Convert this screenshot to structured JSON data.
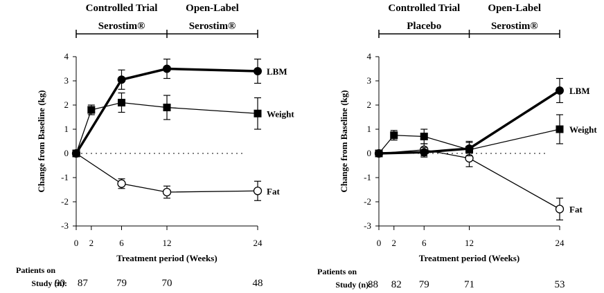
{
  "chart_data": [
    {
      "type": "line",
      "period_labels": [
        [
          "Controlled Trial",
          "Serostim®"
        ],
        [
          "Open-Label",
          "Serostim®"
        ]
      ],
      "period_breaks": [
        0,
        12,
        24
      ],
      "xlabel": "Treatment period (Weeks)",
      "ylabel": "Change from Baseline (kg)",
      "xticks": [
        0,
        2,
        6,
        12,
        24
      ],
      "xlim": [
        0,
        24
      ],
      "ylim": [
        -3,
        4
      ],
      "yticks": [
        -3,
        -2,
        -1,
        0,
        1,
        2,
        3,
        4
      ],
      "reference_line_y": 0,
      "series": [
        {
          "name": "LBM",
          "marker": "filled-circle",
          "weight": "thick",
          "x": [
            0,
            6,
            12,
            24
          ],
          "y": [
            0,
            3.05,
            3.5,
            3.4
          ],
          "err": [
            0,
            0.4,
            0.4,
            0.5
          ]
        },
        {
          "name": "Weight",
          "marker": "filled-square",
          "weight": "thin",
          "x": [
            0,
            2,
            6,
            12,
            24
          ],
          "y": [
            0,
            1.8,
            2.1,
            1.9,
            1.65
          ],
          "err": [
            0,
            0.2,
            0.4,
            0.5,
            0.65
          ]
        },
        {
          "name": "Fat",
          "marker": "open-circle",
          "weight": "thin",
          "x": [
            0,
            6,
            12,
            24
          ],
          "y": [
            0,
            -1.25,
            -1.6,
            -1.55
          ],
          "err": [
            0,
            0.2,
            0.25,
            0.4
          ]
        }
      ],
      "patients_label": [
        "Patients on",
        "Study (n):"
      ],
      "patients": [
        {
          "week": 0,
          "n": "90"
        },
        {
          "week": 2,
          "n": "87"
        },
        {
          "week": 6,
          "n": "79"
        },
        {
          "week": 12,
          "n": "70"
        },
        {
          "week": 24,
          "n": "48"
        }
      ]
    },
    {
      "type": "line",
      "period_labels": [
        [
          "Controlled Trial",
          "Placebo"
        ],
        [
          "Open-Label",
          "Serostim®"
        ]
      ],
      "period_breaks": [
        0,
        12,
        24
      ],
      "xlabel": "Treatment period (Weeks)",
      "ylabel": "Change from Baseline (kg)",
      "xticks": [
        0,
        2,
        6,
        12,
        24
      ],
      "xlim": [
        0,
        24
      ],
      "ylim": [
        -3,
        4
      ],
      "yticks": [
        -3,
        -2,
        -1,
        0,
        1,
        2,
        3,
        4
      ],
      "reference_line_y": 0,
      "series": [
        {
          "name": "LBM",
          "marker": "filled-circle",
          "weight": "thick",
          "x": [
            0,
            6,
            12,
            24
          ],
          "y": [
            0,
            0.05,
            0.2,
            2.6
          ],
          "err": [
            0,
            0.2,
            0.3,
            0.5
          ]
        },
        {
          "name": "Weight",
          "marker": "filled-square",
          "weight": "thin",
          "x": [
            0,
            2,
            6,
            12,
            24
          ],
          "y": [
            0,
            0.75,
            0.7,
            0.15,
            1.0
          ],
          "err": [
            0,
            0.2,
            0.3,
            0.3,
            0.6
          ]
        },
        {
          "name": "Fat",
          "marker": "open-circle",
          "weight": "thin",
          "x": [
            0,
            6,
            12,
            24
          ],
          "y": [
            0,
            0.15,
            -0.2,
            -2.3
          ],
          "err": [
            0,
            0.25,
            0.35,
            0.45
          ]
        }
      ],
      "patients_label": [
        "Patients on",
        "Study (n):"
      ],
      "patients": [
        {
          "week": 0,
          "n": "88"
        },
        {
          "week": 2,
          "n": "82"
        },
        {
          "week": 6,
          "n": "79"
        },
        {
          "week": 12,
          "n": "71"
        },
        {
          "week": 24,
          "n": "53"
        }
      ]
    }
  ]
}
